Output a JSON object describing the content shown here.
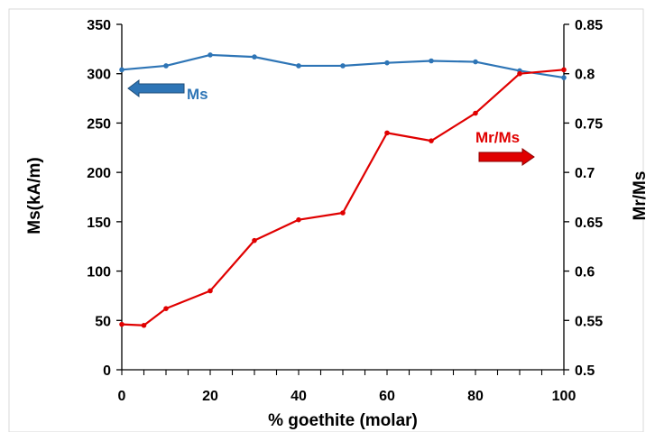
{
  "chart_data": {
    "type": "line",
    "title": "",
    "xlabel": "% goethite (molar)",
    "ylabel": "Ms(kA/m)",
    "y2label": "Mr/Ms",
    "xlim": [
      0,
      100
    ],
    "ylim": [
      0,
      350
    ],
    "y2lim": [
      0.5,
      0.85
    ],
    "x_ticks": [
      0,
      20,
      40,
      60,
      80,
      100
    ],
    "y_ticks": [
      0,
      50,
      100,
      150,
      200,
      250,
      300,
      350
    ],
    "y2_ticks": [
      0.5,
      0.55,
      0.6,
      0.65,
      0.7,
      0.75,
      0.8,
      0.85
    ],
    "x_minor_step": 5,
    "grid": false,
    "legend": "none",
    "series": [
      {
        "name": "Ms",
        "axis": "left",
        "color": "#2e75b6",
        "x": [
          0,
          10,
          20,
          30,
          40,
          50,
          60,
          70,
          80,
          90,
          100
        ],
        "values": [
          304,
          308,
          319,
          317,
          308,
          308,
          311,
          313,
          312,
          303,
          296
        ]
      },
      {
        "name": "Mr/Ms",
        "axis": "right",
        "color": "#e00000",
        "x": [
          0,
          5,
          10,
          20,
          30,
          40,
          50,
          60,
          70,
          80,
          90,
          100
        ],
        "values": [
          0.546,
          0.545,
          0.562,
          0.58,
          0.631,
          0.652,
          0.659,
          0.74,
          0.732,
          0.76,
          0.8,
          0.804
        ]
      }
    ],
    "annotations": [
      {
        "text": "Ms",
        "color": "#2e75b6",
        "arrow_direction": "left",
        "points_to": "left axis"
      },
      {
        "text": "Mr/Ms",
        "color": "#e00000",
        "arrow_direction": "right",
        "points_to": "right axis"
      }
    ]
  }
}
